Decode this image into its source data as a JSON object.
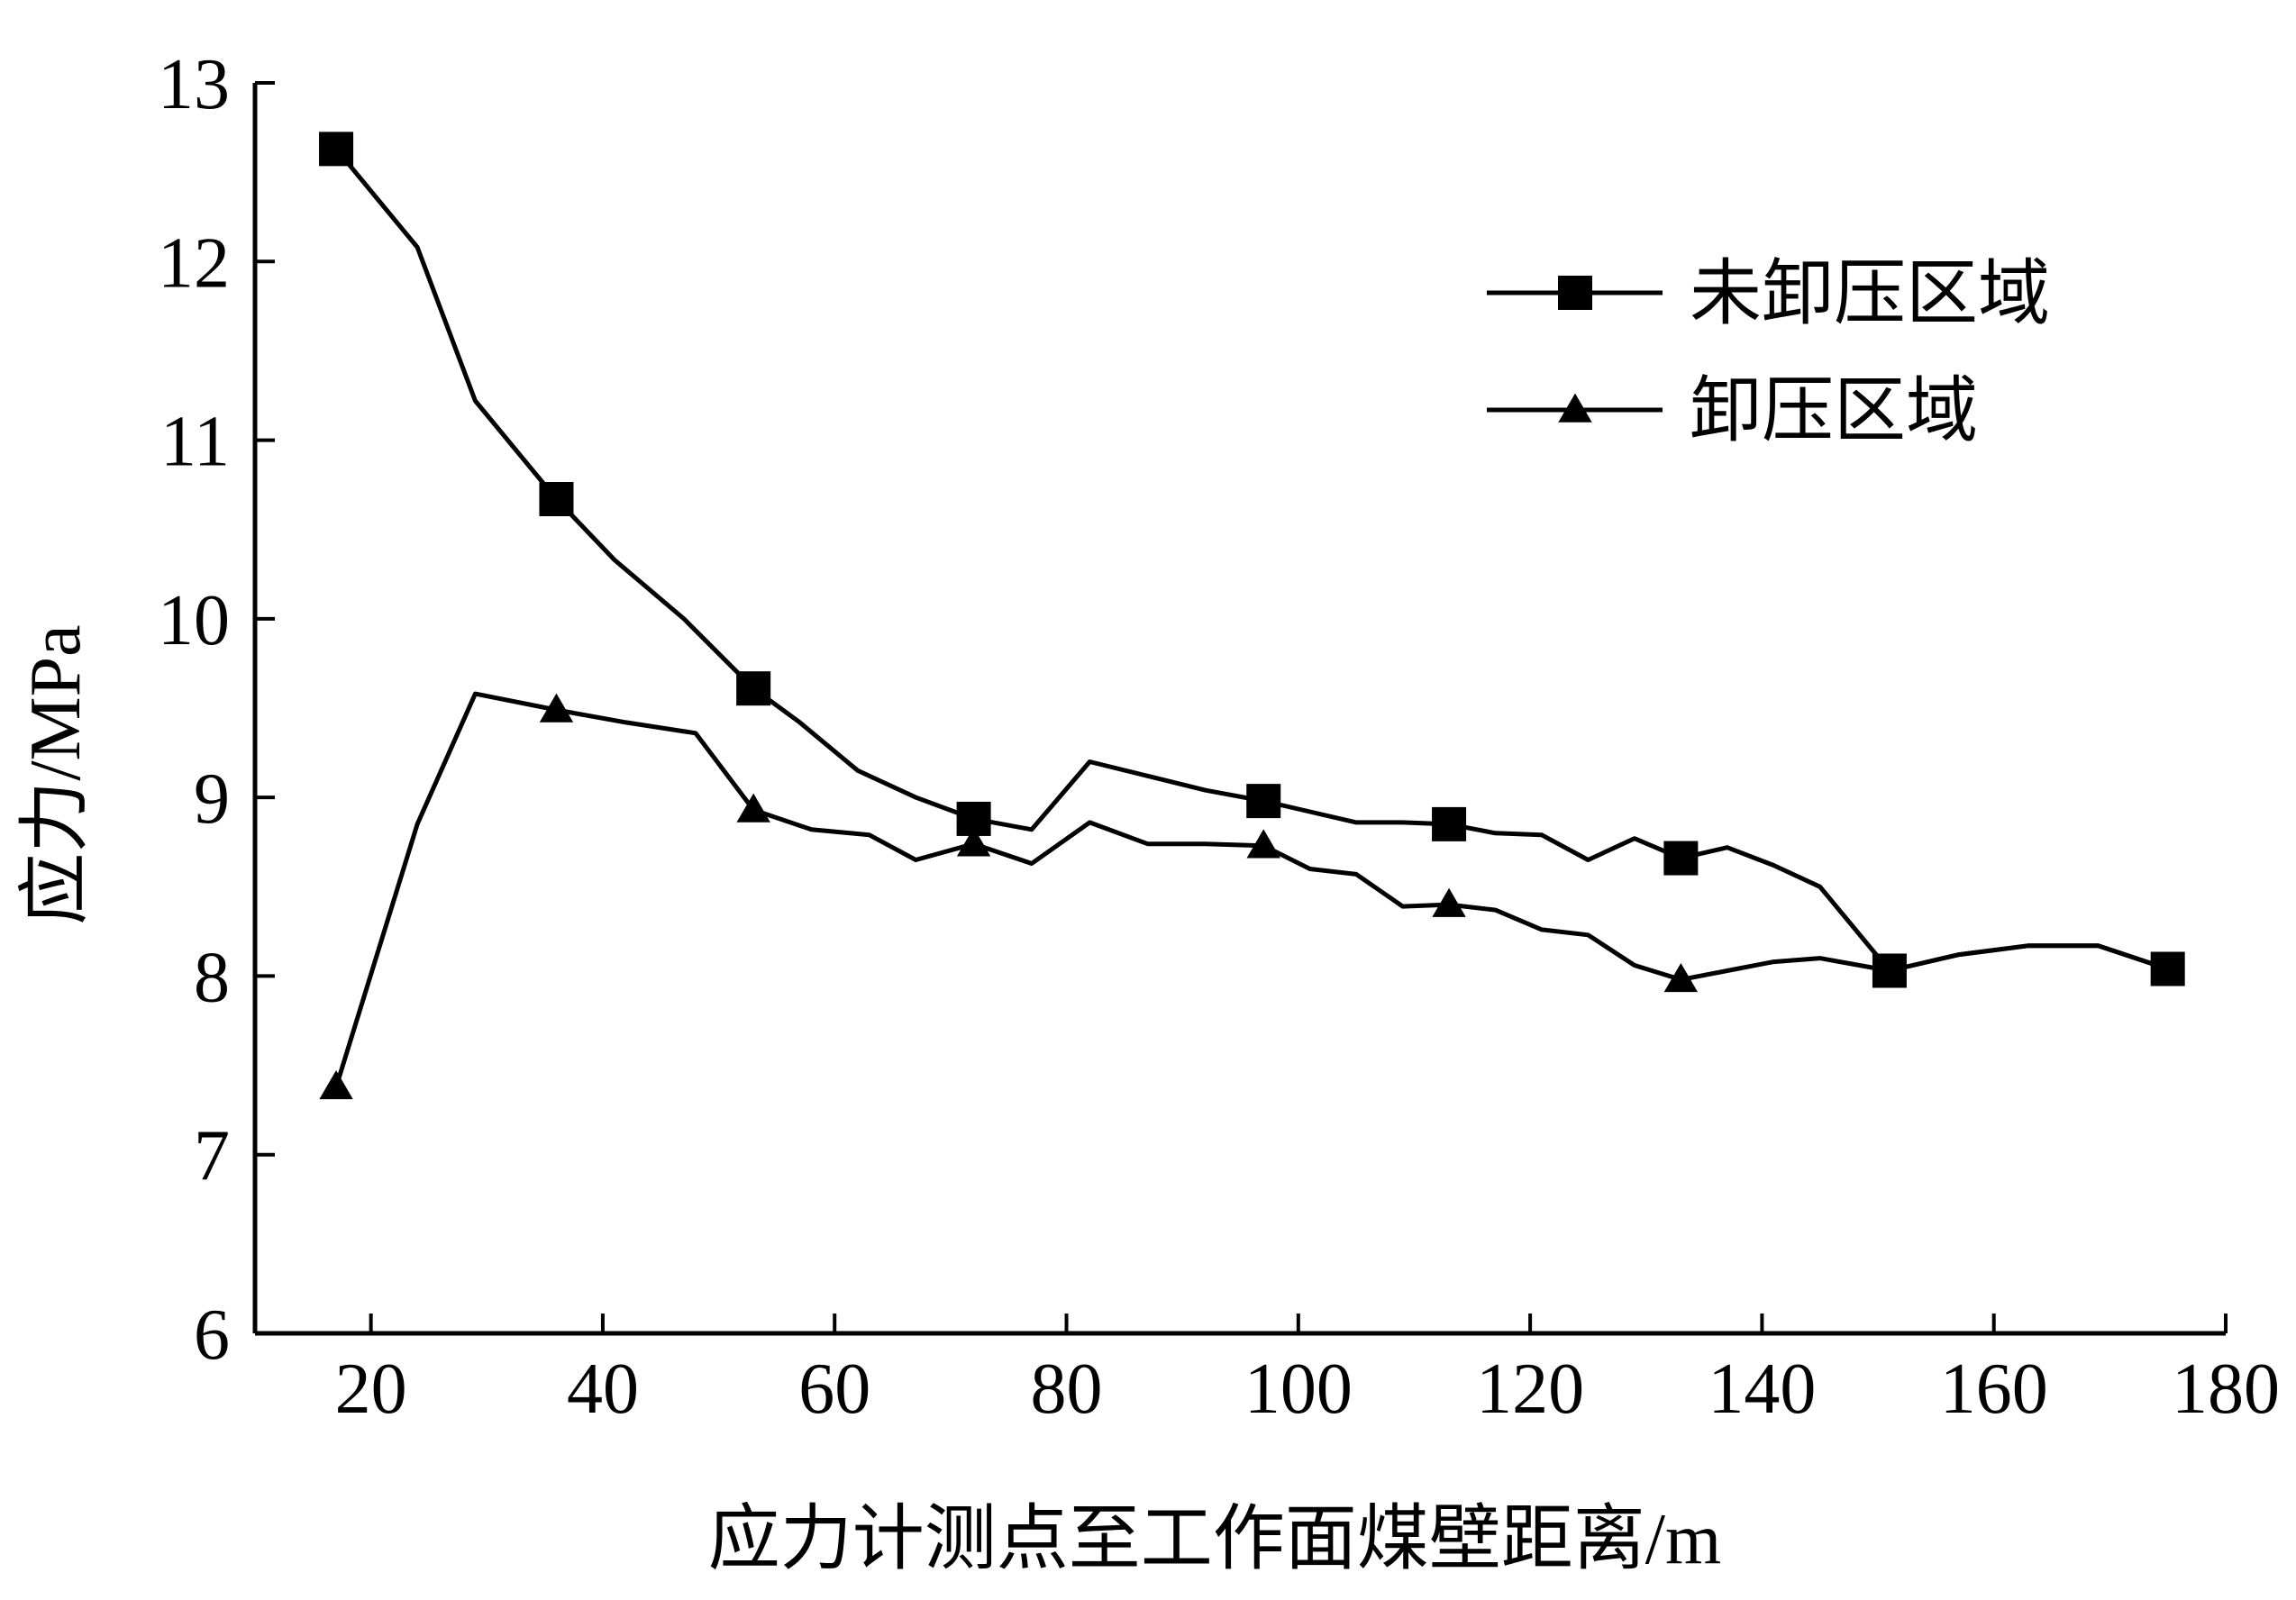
{
  "chart_data": {
    "type": "line",
    "xlabel": "应力计测点至工作面煤壁距离/m",
    "ylabel": "应力/MPa",
    "xlim": [
      10,
      180
    ],
    "ylim": [
      6,
      13
    ],
    "x_ticks": [
      20,
      40,
      60,
      80,
      100,
      120,
      140,
      160,
      180
    ],
    "y_ticks": [
      6,
      7,
      8,
      9,
      10,
      11,
      12,
      13
    ],
    "grid": false,
    "legend_position": "top-right",
    "series": [
      {
        "name": "未卸压区域",
        "marker": "square",
        "color": "#000000",
        "x": [
          17,
          24,
          29,
          36,
          41,
          47,
          53,
          57,
          62,
          67,
          72,
          77,
          82,
          87,
          92,
          97,
          101,
          105,
          109,
          113,
          117,
          121,
          125,
          129,
          133,
          137,
          141,
          145,
          151,
          157,
          163,
          169,
          175
        ],
        "y": [
          12.63,
          12.08,
          11.22,
          10.67,
          10.33,
          10.0,
          9.61,
          9.42,
          9.15,
          9.0,
          8.88,
          8.82,
          9.2,
          9.12,
          9.04,
          8.98,
          8.92,
          8.86,
          8.86,
          8.85,
          8.8,
          8.79,
          8.65,
          8.77,
          8.66,
          8.72,
          8.62,
          8.5,
          8.03,
          8.12,
          8.17,
          8.17,
          8.04
        ]
      },
      {
        "name": "卸压区域",
        "marker": "triangle",
        "color": "#000000",
        "x": [
          17,
          24,
          29,
          36,
          42,
          48,
          53,
          58,
          63,
          67,
          72,
          77,
          82,
          87,
          92,
          97,
          101,
          105,
          109,
          113,
          117,
          121,
          125,
          129,
          133,
          137,
          141,
          145,
          151,
          157,
          163,
          169,
          175
        ],
        "y": [
          7.38,
          8.85,
          9.58,
          9.49,
          9.42,
          9.36,
          8.93,
          8.82,
          8.79,
          8.65,
          8.74,
          8.63,
          8.86,
          8.74,
          8.74,
          8.73,
          8.6,
          8.57,
          8.39,
          8.4,
          8.37,
          8.26,
          8.23,
          8.06,
          7.98,
          8.03,
          8.08,
          8.1,
          8.03,
          8.12,
          8.17,
          8.17,
          8.04
        ]
      }
    ]
  }
}
